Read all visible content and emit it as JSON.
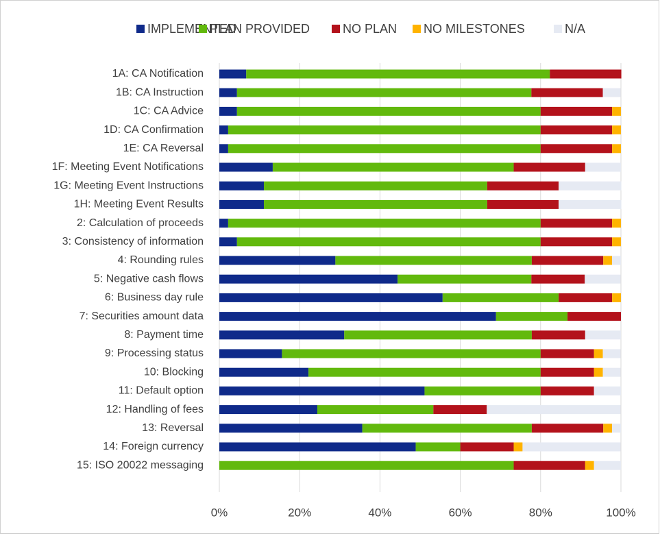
{
  "chart_data": {
    "type": "stacked_bar_horizontal",
    "categories": [
      "1A: CA Notification",
      "1B: CA Instruction",
      "1C: CA Advice",
      "1D: CA Confirmation",
      "1E: CA Reversal",
      "1F: Meeting Event Notifications",
      "1G: Meeting Event Instructions",
      "1H: Meeting Event Results",
      "2: Calculation of proceeds",
      "3: Consistency of information",
      "4: Rounding rules",
      "5: Negative cash flows",
      "6: Business day rule",
      "7: Securities amount data",
      "8: Payment time",
      "9: Processing status",
      "10: Blocking",
      "11: Default option",
      "12: Handling of fees",
      "13: Reversal",
      "14: Foreign currency",
      "15: ISO 20022 messaging"
    ],
    "series": [
      {
        "name": "IMPLEMENTED",
        "color": "#0f2a8a",
        "values": [
          6.7,
          4.4,
          4.4,
          2.2,
          2.2,
          13.3,
          11.1,
          11.1,
          2.2,
          4.4,
          28.9,
          44.4,
          55.6,
          68.9,
          31.1,
          15.6,
          22.2,
          51.1,
          24.4,
          35.6,
          48.9,
          0
        ]
      },
      {
        "name": "PLAN PROVIDED",
        "color": "#62b90d",
        "values": [
          75.6,
          73.3,
          75.6,
          77.8,
          77.8,
          60,
          55.6,
          55.6,
          77.8,
          75.6,
          48.9,
          33.3,
          28.9,
          17.8,
          46.7,
          64.4,
          57.8,
          28.9,
          28.9,
          42.2,
          11.1,
          73.3
        ]
      },
      {
        "name": "NO PLAN",
        "color": "#b3121b",
        "values": [
          17.8,
          17.8,
          17.8,
          17.8,
          17.8,
          17.8,
          17.8,
          17.8,
          17.8,
          17.8,
          17.8,
          13.3,
          13.3,
          13.3,
          13.3,
          13.3,
          13.3,
          13.3,
          13.3,
          17.8,
          13.3,
          17.8
        ]
      },
      {
        "name": "NO MILESTONES",
        "color": "#ffb300",
        "values": [
          0,
          0,
          2.2,
          2.2,
          2.2,
          0,
          0,
          0,
          2.2,
          2.2,
          2.2,
          0,
          2.2,
          0,
          0,
          2.2,
          2.2,
          0,
          0,
          2.2,
          2.2,
          2.2
        ]
      },
      {
        "name": "N/A",
        "color": "#e6eaf3",
        "values": [
          0,
          4.4,
          0,
          0,
          0,
          8.9,
          15.6,
          15.6,
          0,
          0,
          2.2,
          8.9,
          0,
          0,
          8.9,
          4.4,
          4.4,
          6.7,
          33.3,
          2.2,
          24.4,
          6.7
        ]
      }
    ],
    "xlim": [
      0,
      100
    ],
    "xticks": [
      {
        "value": 0,
        "label": "0%"
      },
      {
        "value": 20,
        "label": "20%"
      },
      {
        "value": 40,
        "label": "40%"
      },
      {
        "value": 60,
        "label": "60%"
      },
      {
        "value": 80,
        "label": "80%"
      },
      {
        "value": 100,
        "label": "100%"
      }
    ],
    "grid": true,
    "legend": "top"
  }
}
